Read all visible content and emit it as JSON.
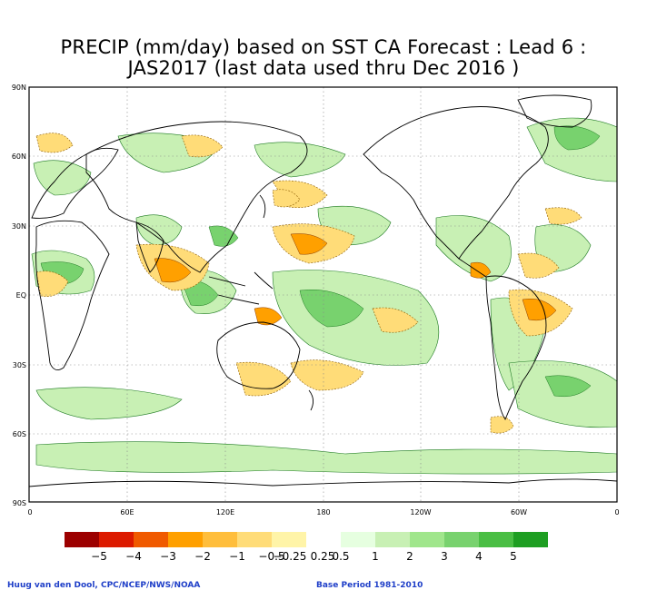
{
  "title": {
    "line1": "PRECIP (mm/day) based on SST CA Forecast : Lead 6 :",
    "line2": "JAS2017 (last data used thru Dec 2016 )"
  },
  "map": {
    "lat_labels": [
      "90N",
      "60N",
      "30N",
      "EQ",
      "30S",
      "60S",
      "90S"
    ],
    "lon_labels": [
      "0",
      "60E",
      "120E",
      "180",
      "120W",
      "60W",
      "0"
    ],
    "projection": "cylindrical equidistant",
    "grid": "dotted at 30-degree intervals",
    "coastlines": "black"
  },
  "legend": {
    "labels": [
      "−5",
      "−4",
      "−3",
      "−2",
      "−1",
      "−0.5",
      "−0.25",
      "0.25",
      "0.5",
      "1",
      "2",
      "3",
      "4",
      "5"
    ],
    "colors": [
      "#9c0000",
      "#dc1a00",
      "#f05a00",
      "#ffa000",
      "#ffbe3c",
      "#ffdc78",
      "#fff4a8",
      "#ffffff",
      "#e6ffe0",
      "#c8f0b4",
      "#a0e68c",
      "#78d26e",
      "#4abe44",
      "#1e9e22"
    ]
  },
  "credits": {
    "left": "Huug van den Dool, CPC/NCEP/NWS/NOAA",
    "right": "Base Period 1981-2010"
  }
}
